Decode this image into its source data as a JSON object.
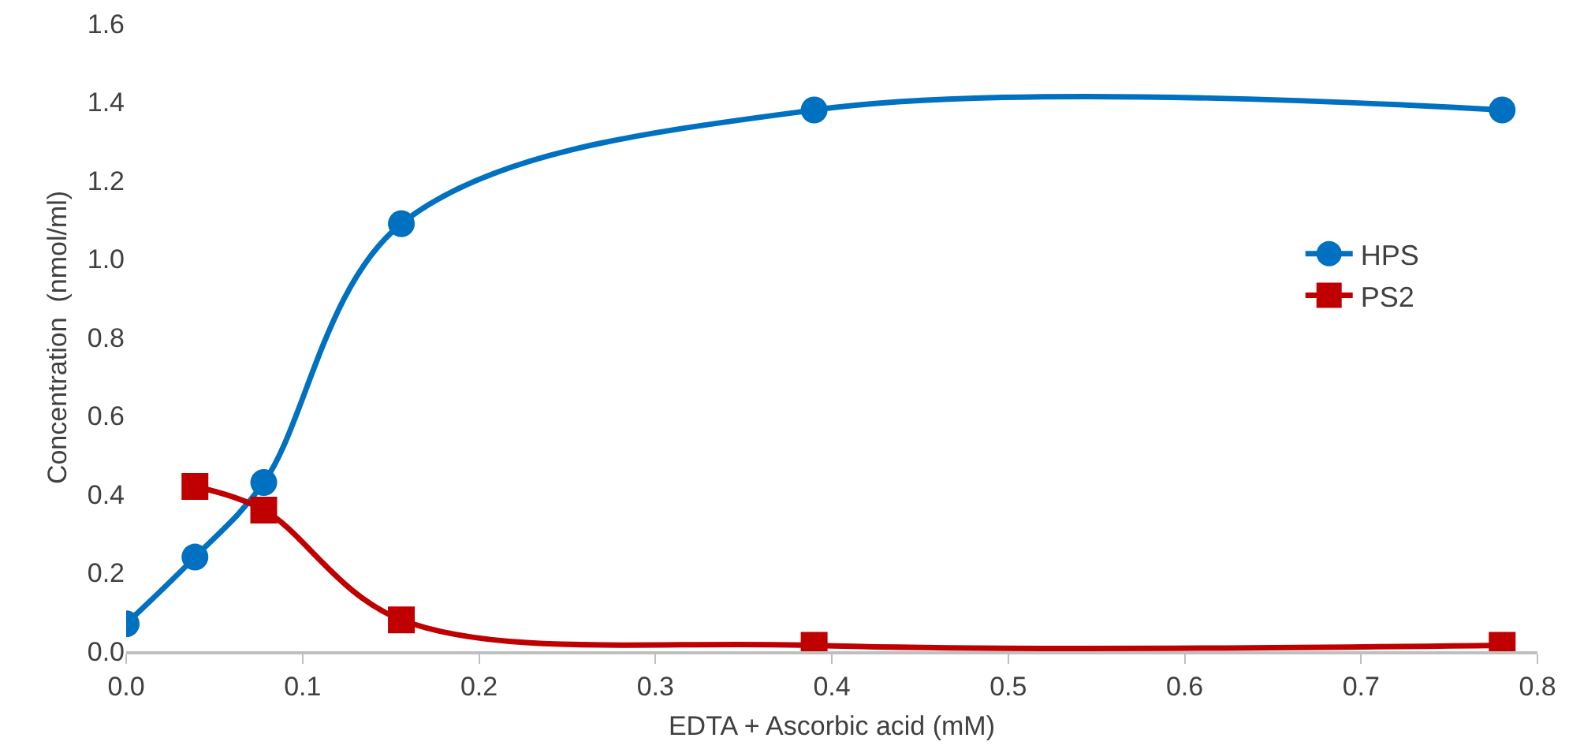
{
  "chart_data": {
    "type": "line",
    "xlabel": "EDTA + Ascorbic acid (mM)",
    "ylabel": "Concentration  (nmol/ml)",
    "xlim": [
      0,
      0.8
    ],
    "xticks": [
      {
        "value": 0,
        "label": "0.0"
      },
      0.1,
      0.2,
      0.3,
      0.4,
      0.5,
      0.6,
      0.7,
      0.8
    ],
    "ylim": [
      0,
      1.6
    ],
    "yticks": [
      {
        "value": 0,
        "label": "0.0"
      },
      0.2,
      0.4,
      0.6,
      0.8,
      {
        "value": 1,
        "label": "1.0"
      },
      1.2,
      1.4,
      1.6
    ],
    "grid": false,
    "legend": "right",
    "line_style": "solid",
    "series": [
      {
        "name": "HPS",
        "color": "#0070c0",
        "marker": "circle",
        "x": [
          0,
          0.039,
          0.078,
          0.156,
          0.39,
          0.78
        ],
        "values": [
          0.07,
          0.24,
          0.43,
          1.09,
          1.38,
          1.38
        ]
      },
      {
        "name": "PS2",
        "color": "#c00000",
        "marker": "square",
        "x": [
          0.039,
          0.078,
          0.156,
          0.39,
          0.78
        ],
        "values": [
          0.42,
          0.36,
          0.08,
          0.015,
          0.015
        ]
      }
    ]
  }
}
